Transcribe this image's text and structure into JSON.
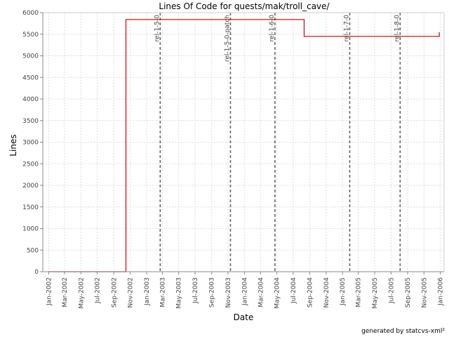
{
  "chart_data": {
    "type": "line",
    "title": "Lines Of Code for quests/mak/troll_cave/",
    "xlabel": "Date",
    "ylabel": "Lines",
    "ylim": [
      0,
      6000
    ],
    "yticks": [
      0,
      500,
      1000,
      1500,
      2000,
      2500,
      3000,
      3500,
      4000,
      4500,
      5000,
      5500,
      6000
    ],
    "xlim": [
      "2001-12-10",
      "2006-01-15"
    ],
    "xticks": [
      {
        "date": "2002-01-01",
        "label": "Jan-2002"
      },
      {
        "date": "2002-03-01",
        "label": "Mar-2002"
      },
      {
        "date": "2002-05-01",
        "label": "May-2002"
      },
      {
        "date": "2002-07-01",
        "label": "Jul-2002"
      },
      {
        "date": "2002-09-01",
        "label": "Sep-2002"
      },
      {
        "date": "2002-11-01",
        "label": "Nov-2002"
      },
      {
        "date": "2003-01-01",
        "label": "Jan-2003"
      },
      {
        "date": "2003-03-01",
        "label": "Mar-2003"
      },
      {
        "date": "2003-05-01",
        "label": "May-2003"
      },
      {
        "date": "2003-07-01",
        "label": "Jul-2003"
      },
      {
        "date": "2003-09-01",
        "label": "Sep-2003"
      },
      {
        "date": "2003-11-01",
        "label": "Nov-2003"
      },
      {
        "date": "2004-01-01",
        "label": "Jan-2004"
      },
      {
        "date": "2004-03-01",
        "label": "Mar-2004"
      },
      {
        "date": "2004-05-01",
        "label": "May-2004"
      },
      {
        "date": "2004-07-01",
        "label": "Jul-2004"
      },
      {
        "date": "2004-09-01",
        "label": "Sep-2004"
      },
      {
        "date": "2004-11-01",
        "label": "Nov-2004"
      },
      {
        "date": "2005-01-01",
        "label": "Jan-2005"
      },
      {
        "date": "2005-03-01",
        "label": "Mar-2005"
      },
      {
        "date": "2005-05-01",
        "label": "May-2005"
      },
      {
        "date": "2005-07-01",
        "label": "Jul-2005"
      },
      {
        "date": "2005-09-01",
        "label": "Sep-2005"
      },
      {
        "date": "2005-11-01",
        "label": "Nov-2005"
      },
      {
        "date": "2006-01-01",
        "label": "Jan-2006"
      }
    ],
    "grid": true,
    "series": [
      {
        "color": "#cc0000",
        "step": true,
        "points": [
          {
            "x": "2002-01-01",
            "y": 0
          },
          {
            "x": "2002-10-16",
            "y": 0
          },
          {
            "x": "2002-10-16",
            "y": 5840
          },
          {
            "x": "2004-08-11",
            "y": 5840
          },
          {
            "x": "2004-08-11",
            "y": 5450
          },
          {
            "x": "2005-12-28",
            "y": 5450
          },
          {
            "x": "2005-12-28",
            "y": 5540
          }
        ]
      }
    ],
    "markers": [
      {
        "label": "rel-1-5-0",
        "date": "2003-02-21"
      },
      {
        "label": "rel-1-5-0-patch",
        "date": "2003-11-10"
      },
      {
        "label": "rel-1-6-0",
        "date": "2004-04-24"
      },
      {
        "label": "rel-1-7-0",
        "date": "2005-01-28"
      },
      {
        "label": "rel-1-8-0",
        "date": "2005-08-04"
      }
    ],
    "marker_color": "#666666",
    "footer": "generated by statcvs-xml²"
  }
}
